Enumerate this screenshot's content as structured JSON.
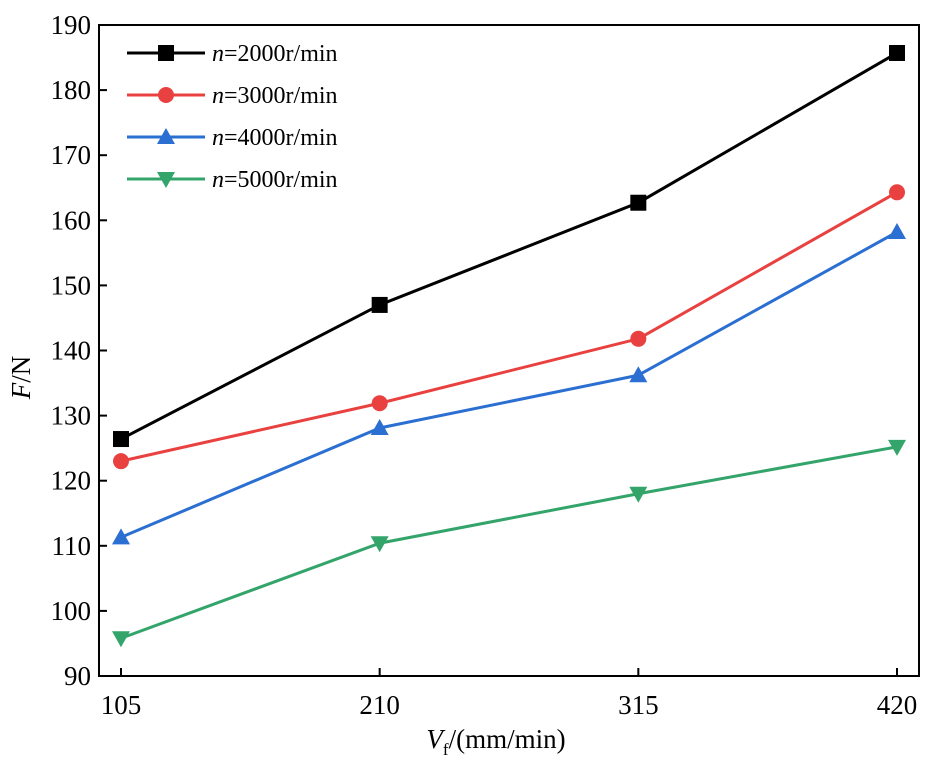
{
  "chart_data": {
    "type": "line",
    "title": "",
    "xlabel": {
      "main": "V",
      "sub": "f",
      "rest": "/(mm/min)"
    },
    "ylabel": {
      "italic": "F",
      "rest": "/N"
    },
    "x": [
      105,
      210,
      315,
      420
    ],
    "xticks": [
      "105",
      "210",
      "315",
      "420"
    ],
    "ylim": [
      90,
      190
    ],
    "yticks": [
      "90",
      "100",
      "110",
      "120",
      "130",
      "140",
      "150",
      "160",
      "170",
      "180",
      "190"
    ],
    "grid": false,
    "legend_position": "top-left",
    "series": [
      {
        "name_italic": "n",
        "name_rest": "=2000r/min",
        "values": [
          126.4,
          147.0,
          162.7,
          185.7
        ],
        "color": "#000000",
        "marker": "square"
      },
      {
        "name_italic": "n",
        "name_rest": "=3000r/min",
        "values": [
          123.0,
          131.9,
          141.8,
          164.3
        ],
        "color": "#e8413f",
        "marker": "circle"
      },
      {
        "name_italic": "n",
        "name_rest": "=4000r/min",
        "values": [
          111.3,
          128.1,
          136.2,
          158.2
        ],
        "color": "#2a6fd1",
        "marker": "triangle-up"
      },
      {
        "name_italic": "n",
        "name_rest": "=5000r/min",
        "values": [
          95.8,
          110.4,
          118.0,
          125.2
        ],
        "color": "#33a46a",
        "marker": "triangle-down"
      }
    ]
  }
}
